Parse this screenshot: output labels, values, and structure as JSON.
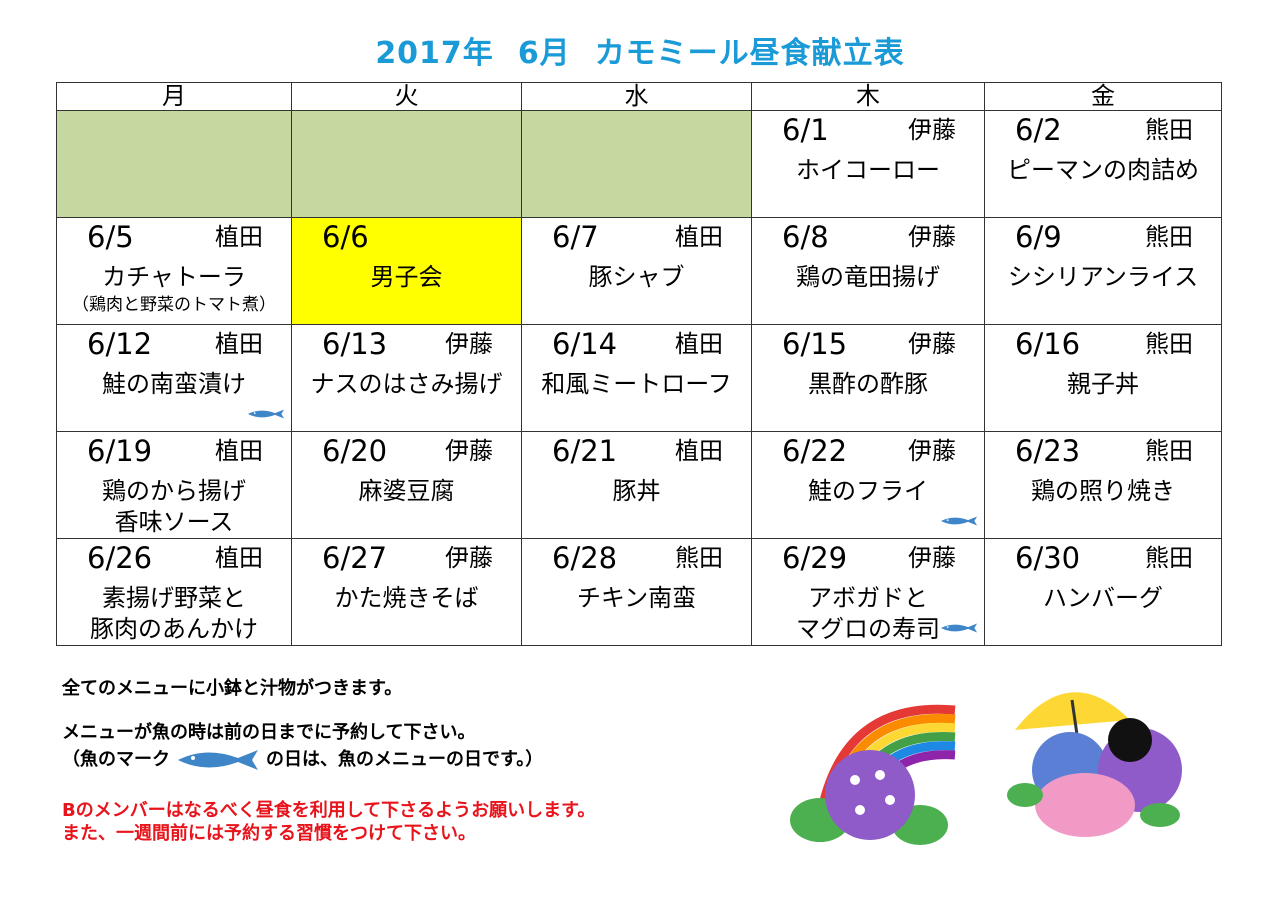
{
  "title": {
    "year": "2017年",
    "month": "6月",
    "name": "カモミール昼食献立表"
  },
  "weekdays": [
    "月",
    "火",
    "水",
    "木",
    "金"
  ],
  "weeks": [
    [
      null,
      null,
      null,
      {
        "date": "6/1",
        "name": "伊藤",
        "menu": "ホイコーロー"
      },
      {
        "date": "6/2",
        "name": "熊田",
        "menu": "ピーマンの肉詰め"
      }
    ],
    [
      {
        "date": "6/5",
        "name": "植田",
        "menu": "カチャトーラ",
        "sub": "（鶏肉と野菜のトマト煮）"
      },
      {
        "date": "6/6",
        "name": "",
        "menu": "男子会",
        "highlight": true
      },
      {
        "date": "6/7",
        "name": "植田",
        "menu": "豚シャブ"
      },
      {
        "date": "6/8",
        "name": "伊藤",
        "menu": "鶏の竜田揚げ"
      },
      {
        "date": "6/9",
        "name": "熊田",
        "menu": "シシリアンライス"
      }
    ],
    [
      {
        "date": "6/12",
        "name": "植田",
        "menu": "鮭の南蛮漬け",
        "fish": true
      },
      {
        "date": "6/13",
        "name": "伊藤",
        "menu": "ナスのはさみ揚げ"
      },
      {
        "date": "6/14",
        "name": "植田",
        "menu": "和風ミートローフ"
      },
      {
        "date": "6/15",
        "name": "伊藤",
        "menu": "黒酢の酢豚"
      },
      {
        "date": "6/16",
        "name": "熊田",
        "menu": "親子丼"
      }
    ],
    [
      {
        "date": "6/19",
        "name": "植田",
        "menu": "鶏のから揚げ",
        "menu2": "香味ソース"
      },
      {
        "date": "6/20",
        "name": "伊藤",
        "menu": "麻婆豆腐"
      },
      {
        "date": "6/21",
        "name": "植田",
        "menu": "豚丼"
      },
      {
        "date": "6/22",
        "name": "伊藤",
        "menu": "鮭のフライ",
        "fish": true
      },
      {
        "date": "6/23",
        "name": "熊田",
        "menu": "鶏の照り焼き"
      }
    ],
    [
      {
        "date": "6/26",
        "name": "植田",
        "menu": "素揚げ野菜と",
        "menu2": "豚肉のあんかけ"
      },
      {
        "date": "6/27",
        "name": "伊藤",
        "menu": "かた焼きそば"
      },
      {
        "date": "6/28",
        "name": "熊田",
        "menu": "チキン南蛮"
      },
      {
        "date": "6/29",
        "name": "伊藤",
        "menu": "アボガドと",
        "menu2": "マグロの寿司",
        "fish": true
      },
      {
        "date": "6/30",
        "name": "熊田",
        "menu": "ハンバーグ"
      }
    ]
  ],
  "notes": {
    "line1": "全てのメニューに小鉢と汁物がつきます。",
    "line2": "メニューが魚の時は前の日までに予約して下さい。",
    "line3a": "（魚のマーク",
    "line3b": "の日は、魚のメニューの日です。）",
    "red1": "Bのメンバーはなるべく昼食を利用して下さるようお願いします。",
    "red2": "また、一週間前には予約する習慣をつけて下さい。"
  },
  "colors": {
    "title": "#1a9ad6",
    "empty_cell": "#c5d8a0",
    "highlight": "#ffff00",
    "fish": "#3f86c9",
    "red_note": "#e8141c"
  },
  "icons": {
    "fish": "fish-icon",
    "rainbow": "rainbow-hydrangea-illustration",
    "umbrella": "umbrella-hydrangea-illustration"
  }
}
